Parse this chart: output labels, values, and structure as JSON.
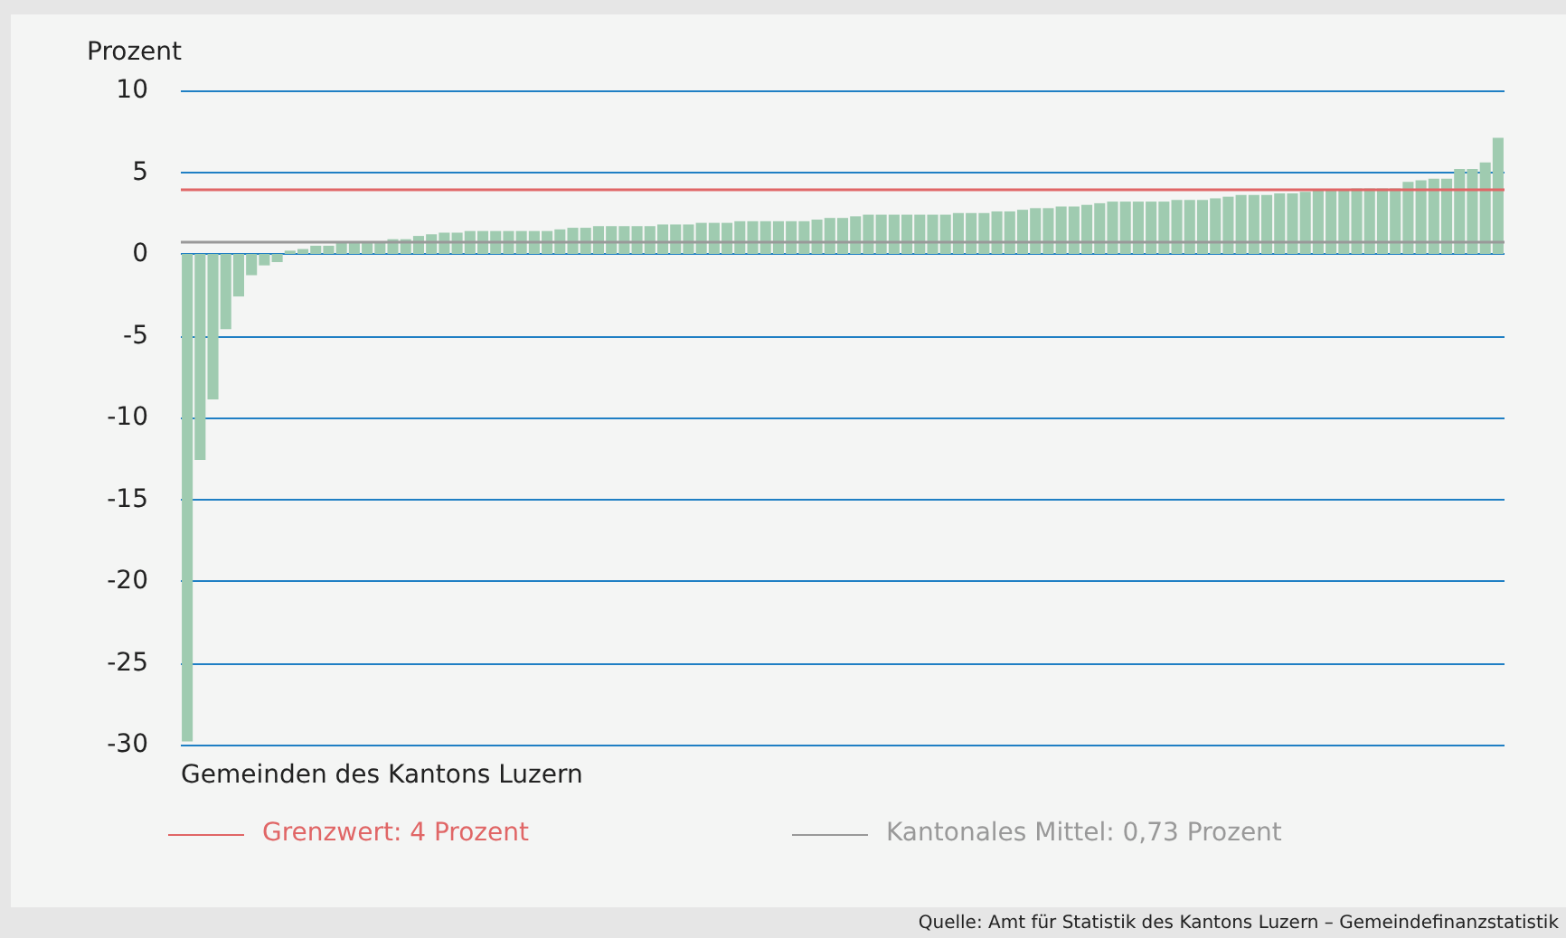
{
  "chart_data": {
    "type": "bar",
    "ylabel": "Prozent",
    "xlabel": "Gemeinden des Kantons Luzern",
    "categories": [
      null,
      null,
      null,
      null,
      null,
      null,
      null,
      null,
      null,
      null,
      null,
      null,
      null,
      null,
      null,
      null,
      null,
      null,
      null,
      null,
      null,
      null,
      null,
      null,
      null,
      null,
      null,
      null,
      null,
      null,
      null,
      null,
      null,
      null,
      null,
      null,
      null,
      null,
      null,
      null,
      null,
      null,
      null,
      null,
      null,
      null,
      null,
      null,
      null,
      null,
      null,
      null,
      null,
      null,
      null,
      null,
      null,
      null,
      null,
      null,
      null,
      null,
      null,
      null,
      null,
      null,
      null,
      null,
      null,
      null,
      null,
      null,
      null,
      null,
      null,
      null,
      null,
      null,
      null,
      null,
      null,
      null,
      null,
      null,
      null,
      null,
      null,
      null,
      null,
      null,
      null,
      null,
      null,
      null,
      null,
      null,
      null,
      null,
      null,
      null,
      null,
      null,
      null
    ],
    "values": [
      -29.8,
      -12.6,
      -8.9,
      -4.6,
      -2.6,
      -1.3,
      -0.7,
      -0.5,
      0.2,
      0.3,
      0.5,
      0.5,
      0.7,
      0.7,
      0.7,
      0.7,
      0.9,
      0.9,
      1.1,
      1.2,
      1.3,
      1.3,
      1.4,
      1.4,
      1.4,
      1.4,
      1.4,
      1.4,
      1.4,
      1.5,
      1.6,
      1.6,
      1.7,
      1.7,
      1.7,
      1.7,
      1.7,
      1.8,
      1.8,
      1.8,
      1.9,
      1.9,
      1.9,
      2.0,
      2.0,
      2.0,
      2.0,
      2.0,
      2.0,
      2.1,
      2.2,
      2.2,
      2.3,
      2.4,
      2.4,
      2.4,
      2.4,
      2.4,
      2.4,
      2.4,
      2.5,
      2.5,
      2.5,
      2.6,
      2.6,
      2.7,
      2.8,
      2.8,
      2.9,
      2.9,
      3.0,
      3.1,
      3.2,
      3.2,
      3.2,
      3.2,
      3.2,
      3.3,
      3.3,
      3.3,
      3.4,
      3.5,
      3.6,
      3.6,
      3.6,
      3.7,
      3.7,
      3.8,
      3.9,
      3.9,
      3.9,
      4.0,
      4.0,
      4.0,
      4.0,
      4.4,
      4.5,
      4.6,
      4.6,
      5.2,
      5.2,
      5.6,
      7.1
    ],
    "color": "#9fcbb0",
    "ylim": [
      -30,
      10
    ],
    "yticks": [
      -30,
      -25,
      -20,
      -15,
      -10,
      -5,
      0,
      5,
      10
    ],
    "grid": "y",
    "legend": "bottom",
    "ref_lines": [
      {
        "axis": "y",
        "value": 4,
        "label": "Grenzwert: 4 Prozent",
        "color": "#e06666"
      },
      {
        "axis": "y",
        "value": 0.73,
        "label": "Kantonales Mittel: 0,73 Prozent",
        "color": "#999999"
      }
    ],
    "annotations": [
      "Quelle: Amt für Statistik des Kantons Luzern – Gemeindefinanzstatistik"
    ]
  }
}
